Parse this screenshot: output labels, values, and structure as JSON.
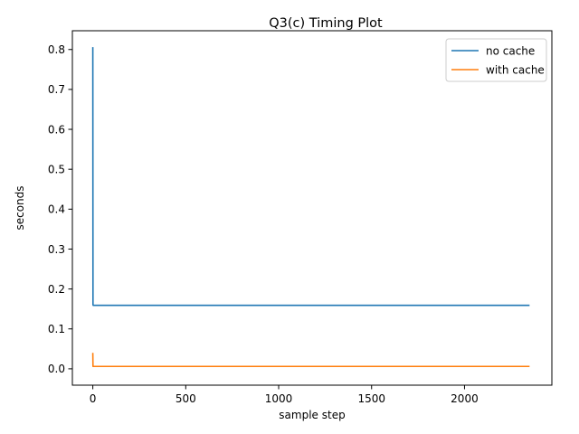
{
  "chart_data": {
    "type": "line",
    "title": "Q3(c) Timing Plot",
    "xlabel": "sample step",
    "ylabel": "seconds",
    "xlim": [
      -110,
      2470
    ],
    "ylim": [
      -0.041,
      0.847
    ],
    "xticks": [
      0,
      500,
      1000,
      1500,
      2000
    ],
    "xtick_labels": [
      "0",
      "500",
      "1000",
      "1500",
      "2000"
    ],
    "yticks": [
      0.0,
      0.1,
      0.2,
      0.3,
      0.4,
      0.5,
      0.6,
      0.7,
      0.8
    ],
    "ytick_labels": [
      "0.0",
      "0.1",
      "0.2",
      "0.3",
      "0.4",
      "0.5",
      "0.6",
      "0.7",
      "0.8"
    ],
    "grid": false,
    "legend_position": "top-right",
    "series": [
      {
        "name": "no cache",
        "color": "#1f77b4",
        "x": [
          0,
          1,
          2,
          100,
          500,
          1000,
          1500,
          2000,
          2350
        ],
        "y": [
          0.806,
          0.16,
          0.159,
          0.159,
          0.159,
          0.159,
          0.159,
          0.159,
          0.159
        ]
      },
      {
        "name": "with cache",
        "color": "#ff7f0e",
        "x": [
          0,
          1,
          2,
          100,
          500,
          1000,
          1500,
          2000,
          2350
        ],
        "y": [
          0.04,
          0.006,
          0.006,
          0.006,
          0.006,
          0.006,
          0.006,
          0.006,
          0.006
        ]
      }
    ]
  }
}
